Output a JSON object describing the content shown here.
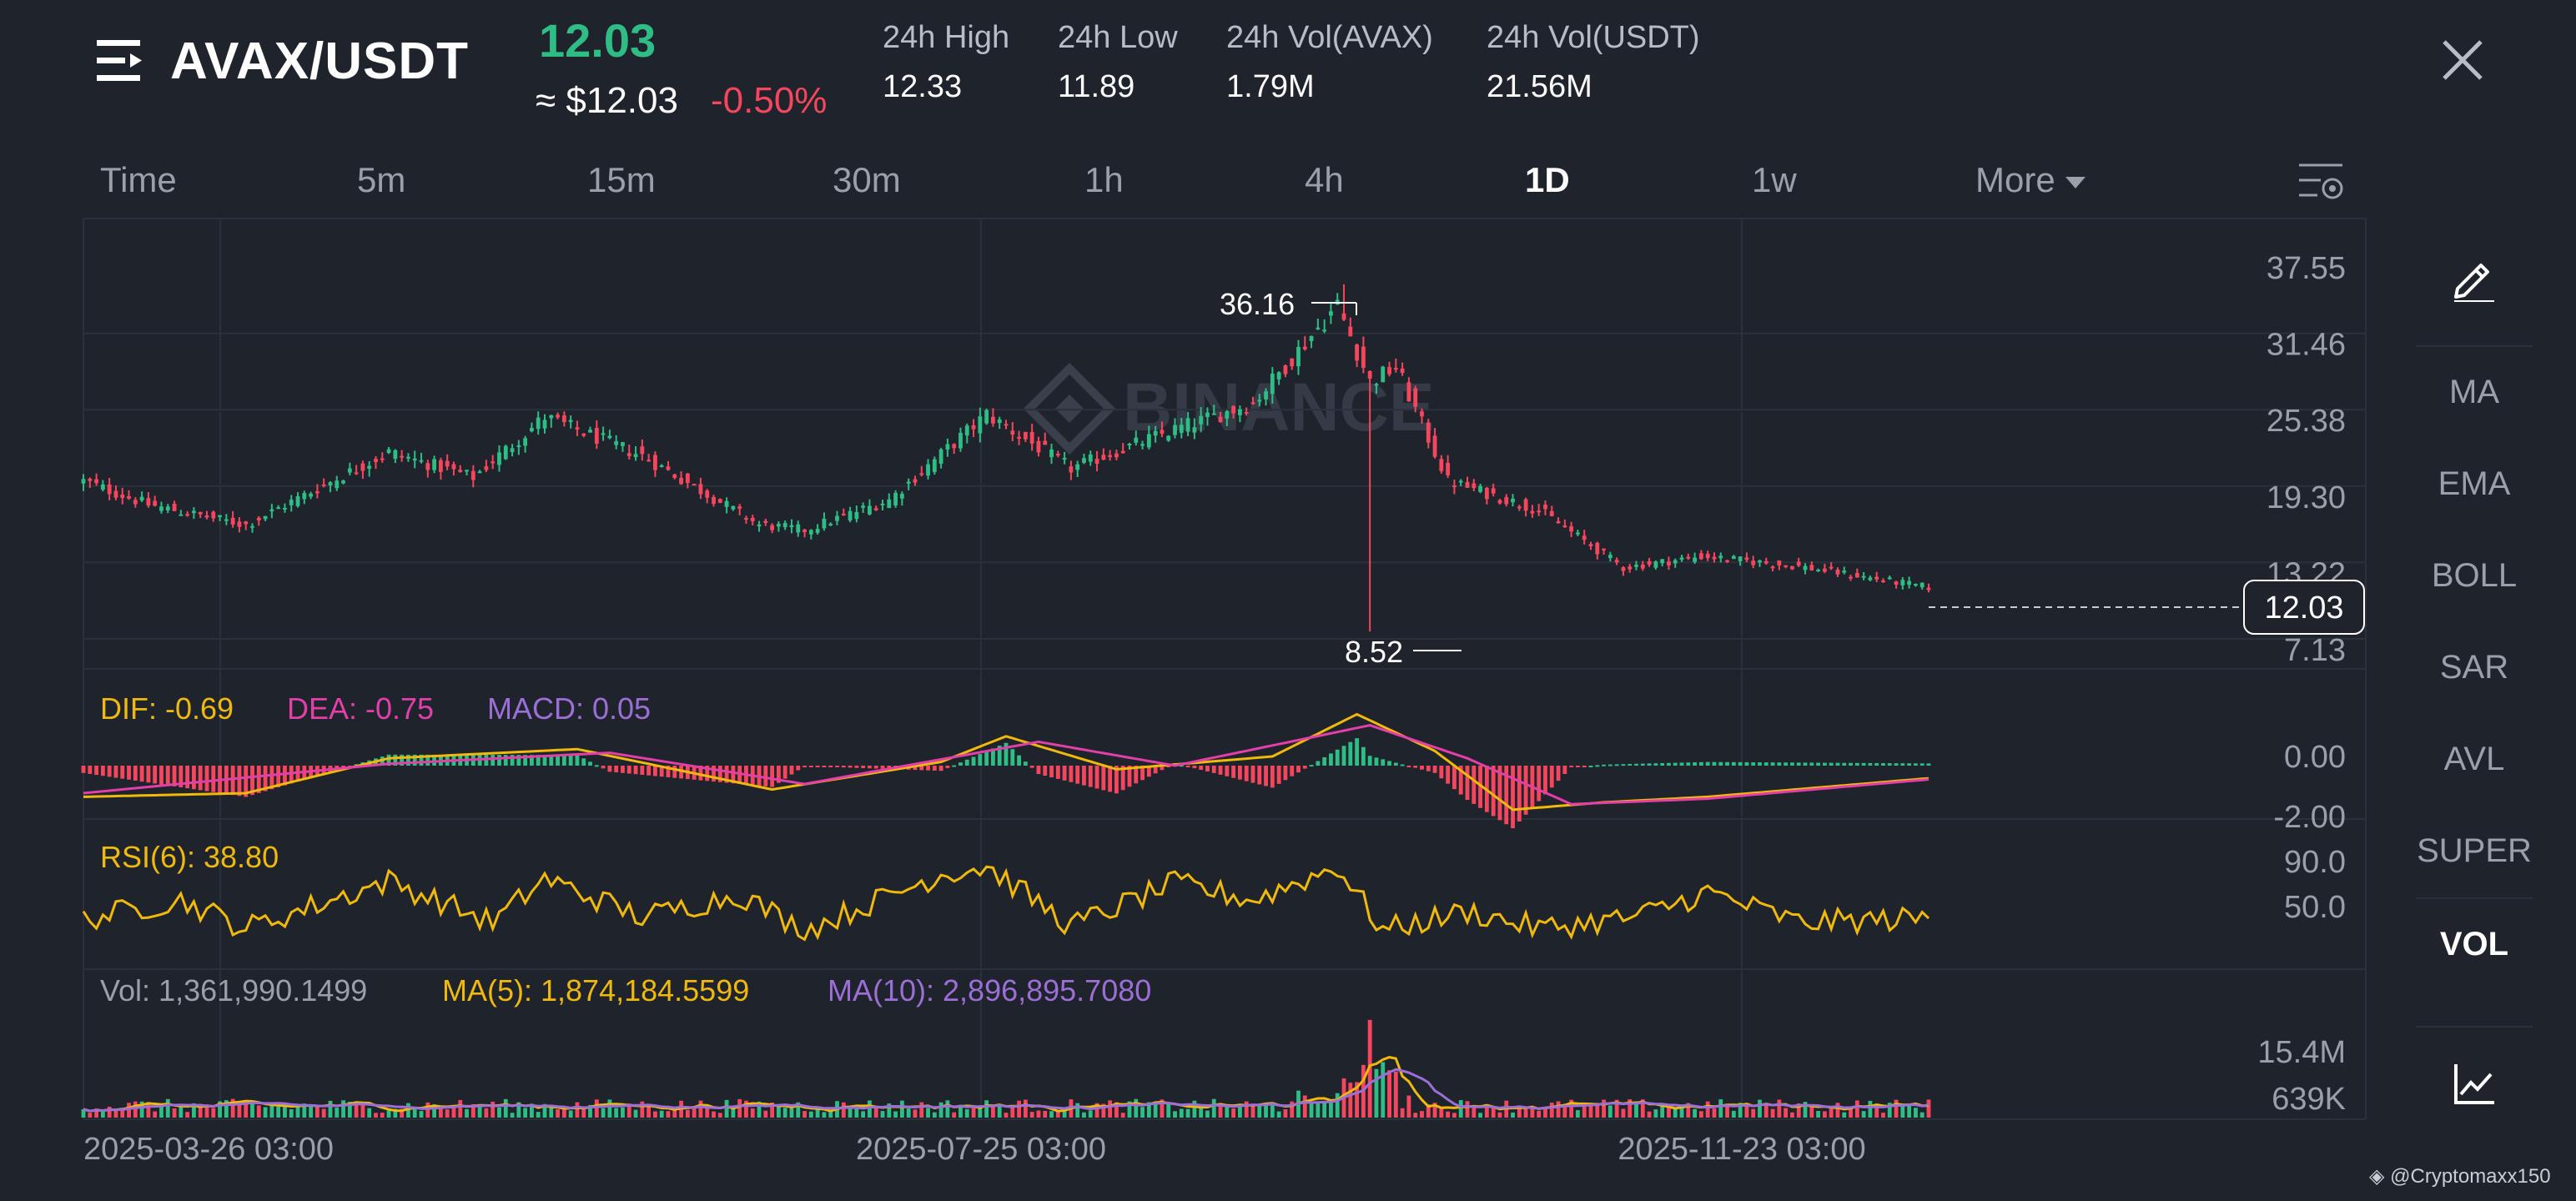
{
  "header": {
    "pair": "AVAX/USDT",
    "last_price": "12.03",
    "approx_price": "≈ $12.03",
    "change": "-0.50%",
    "stats": [
      {
        "label": "24h High",
        "value": "12.33"
      },
      {
        "label": "24h Low",
        "value": "11.89"
      },
      {
        "label": "24h Vol(AVAX)",
        "value": "1.79M"
      },
      {
        "label": "24h Vol(USDT)",
        "value": "21.56M"
      }
    ]
  },
  "tabs": [
    "Time",
    "5m",
    "15m",
    "30m",
    "1h",
    "4h",
    "1D",
    "1w",
    "More"
  ],
  "active_tab": "1D",
  "sidebar": [
    "MA",
    "EMA",
    "BOLL",
    "SAR",
    "AVL",
    "SUPER",
    "VOL"
  ],
  "sidebar_active": "VOL",
  "colors": {
    "up": "#2ebd85",
    "down": "#f6465d",
    "dif": "#f0b90b",
    "dea": "#e23fa8",
    "macd": "#9b6fd6",
    "rsi": "#f0b90b",
    "ma5": "#f0b90b",
    "ma10": "#9b6fd6",
    "background": "#1f232c"
  },
  "watermark": "BINANCE",
  "credit": "@Cryptomaxx150",
  "chart_data": [
    {
      "type": "candlestick",
      "yticks": [
        "37.55",
        "31.46",
        "25.38",
        "19.30",
        "13.22",
        "7.13"
      ],
      "ylim": [
        7.13,
        37.55
      ],
      "current_price_label": "12.03",
      "max_label": "36.16",
      "min_label": "8.52",
      "xticks": [
        "2025-03-26 03:00",
        "2025-07-25 03:00",
        "2025-11-23 03:00"
      ],
      "close_anchors": [
        {
          "date": "2025-03-26",
          "close": 20.5
        },
        {
          "date": "2025-04-05",
          "close": 18.6
        },
        {
          "date": "2025-04-20",
          "close": 17.0
        },
        {
          "date": "2025-05-12",
          "close": 22.8
        },
        {
          "date": "2025-05-25",
          "close": 20.8
        },
        {
          "date": "2025-06-05",
          "close": 25.6
        },
        {
          "date": "2025-06-20",
          "close": 22.5
        },
        {
          "date": "2025-07-08",
          "close": 17.0
        },
        {
          "date": "2025-07-15",
          "close": 16.6
        },
        {
          "date": "2025-07-28",
          "close": 19.0
        },
        {
          "date": "2025-08-12",
          "close": 25.8
        },
        {
          "date": "2025-08-25",
          "close": 21.5
        },
        {
          "date": "2025-09-10",
          "close": 24.6
        },
        {
          "date": "2025-09-22",
          "close": 26.7
        },
        {
          "date": "2025-10-05",
          "close": 34.5
        },
        {
          "date": "2025-10-10",
          "close": 28.4
        },
        {
          "date": "2025-10-14",
          "close": 29.6
        },
        {
          "date": "2025-10-22",
          "close": 20.5
        },
        {
          "date": "2025-11-05",
          "close": 18.2
        },
        {
          "date": "2025-11-18",
          "close": 13.6
        },
        {
          "date": "2025-11-30",
          "close": 14.5
        },
        {
          "date": "2025-12-15",
          "close": 13.7
        },
        {
          "date": "2026-01-04",
          "close": 12.03
        }
      ],
      "extremes": [
        {
          "date": "2025-10-06",
          "high": 36.16
        },
        {
          "date": "2025-10-10",
          "low": 8.52
        }
      ]
    },
    {
      "type": "line",
      "name": "MACD",
      "labels": {
        "dif": "DIF: -0.69",
        "dea": "DEA: -0.75",
        "macd": "MACD: 0.05"
      },
      "yticks": [
        "0.00",
        "-2.00"
      ],
      "dif_anchors": [
        {
          "date": "2025-03-26",
          "value": -1.7
        },
        {
          "date": "2025-04-20",
          "value": -1.5
        },
        {
          "date": "2025-05-12",
          "value": 0.4
        },
        {
          "date": "2025-06-10",
          "value": 0.9
        },
        {
          "date": "2025-07-10",
          "value": -1.3
        },
        {
          "date": "2025-08-05",
          "value": 0.2
        },
        {
          "date": "2025-08-15",
          "value": 1.6
        },
        {
          "date": "2025-09-01",
          "value": -0.2
        },
        {
          "date": "2025-09-25",
          "value": 0.5
        },
        {
          "date": "2025-10-08",
          "value": 2.8
        },
        {
          "date": "2025-10-20",
          "value": 0.8
        },
        {
          "date": "2025-11-01",
          "value": -2.4
        },
        {
          "date": "2025-11-15",
          "value": -2.0
        },
        {
          "date": "2025-12-01",
          "value": -1.7
        },
        {
          "date": "2026-01-04",
          "value": -0.69
        }
      ],
      "dea_anchors": [
        {
          "date": "2025-03-26",
          "value": -1.5
        },
        {
          "date": "2025-05-12",
          "value": 0.1
        },
        {
          "date": "2025-06-15",
          "value": 0.7
        },
        {
          "date": "2025-07-15",
          "value": -1.0
        },
        {
          "date": "2025-08-20",
          "value": 1.3
        },
        {
          "date": "2025-09-10",
          "value": 0.0
        },
        {
          "date": "2025-10-10",
          "value": 2.2
        },
        {
          "date": "2025-10-25",
          "value": 0.4
        },
        {
          "date": "2025-11-10",
          "value": -2.1
        },
        {
          "date": "2025-12-01",
          "value": -1.8
        },
        {
          "date": "2026-01-04",
          "value": -0.75
        }
      ]
    },
    {
      "type": "line",
      "name": "RSI(6)",
      "label": "RSI(6): 38.80",
      "yticks": [
        "90.0",
        "50.0"
      ],
      "anchors": [
        {
          "date": "2025-03-26",
          "value": 38
        },
        {
          "date": "2025-04-10",
          "value": 55
        },
        {
          "date": "2025-04-20",
          "value": 30
        },
        {
          "date": "2025-05-12",
          "value": 72
        },
        {
          "date": "2025-05-28",
          "value": 35
        },
        {
          "date": "2025-06-05",
          "value": 74
        },
        {
          "date": "2025-06-20",
          "value": 40
        },
        {
          "date": "2025-07-05",
          "value": 60
        },
        {
          "date": "2025-07-15",
          "value": 28
        },
        {
          "date": "2025-08-05",
          "value": 78
        },
        {
          "date": "2025-08-12",
          "value": 85
        },
        {
          "date": "2025-08-25",
          "value": 32
        },
        {
          "date": "2025-09-10",
          "value": 70
        },
        {
          "date": "2025-09-22",
          "value": 55
        },
        {
          "date": "2025-10-05",
          "value": 85
        },
        {
          "date": "2025-10-12",
          "value": 28
        },
        {
          "date": "2025-10-25",
          "value": 45
        },
        {
          "date": "2025-11-05",
          "value": 30
        },
        {
          "date": "2025-11-20",
          "value": 40
        },
        {
          "date": "2025-12-01",
          "value": 62
        },
        {
          "date": "2025-12-15",
          "value": 35
        },
        {
          "date": "2026-01-04",
          "value": 38.8
        }
      ]
    },
    {
      "type": "bar",
      "name": "Volume",
      "labels": {
        "vol": "Vol: 1,361,990.1499",
        "ma5": "MA(5): 1,874,184.5599",
        "ma10": "MA(10): 2,896,895.7080"
      },
      "yticks": [
        "15.4M",
        "639K"
      ],
      "spike": {
        "date": "2025-10-10",
        "value": "15.4M"
      }
    }
  ]
}
